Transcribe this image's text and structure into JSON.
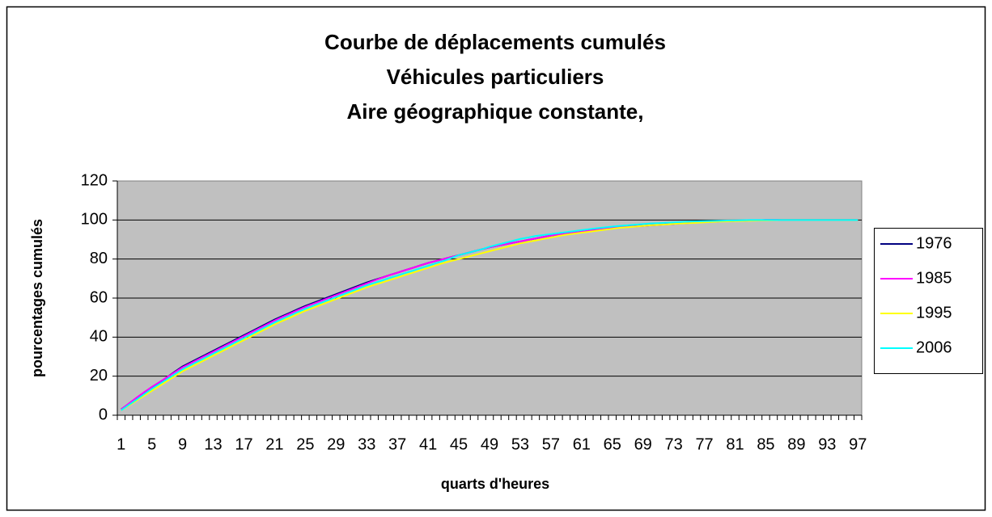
{
  "chart_data": {
    "type": "line",
    "title": [
      "Courbe de déplacements cumulés",
      "Véhicules particuliers",
      "Aire géographique constante,"
    ],
    "x_label": "quarts d'heures",
    "y_label": "pourcentages cumulés",
    "categories": [
      "1",
      null,
      null,
      null,
      "5",
      null,
      null,
      null,
      "9",
      null,
      null,
      null,
      "13",
      null,
      null,
      null,
      "17",
      null,
      null,
      null,
      "21",
      null,
      null,
      null,
      "25",
      null,
      null,
      null,
      "29",
      null,
      null,
      null,
      "33",
      null,
      null,
      null,
      "37",
      null,
      null,
      null,
      "41",
      null,
      null,
      null,
      "45",
      null,
      null,
      null,
      "49",
      null,
      null,
      null,
      "53",
      null,
      null,
      null,
      "57",
      null,
      null,
      null,
      "61",
      null,
      null,
      null,
      "65",
      null,
      null,
      null,
      "69",
      null,
      null,
      null,
      "73",
      null,
      null,
      null,
      "77",
      null,
      null,
      null,
      "81",
      null,
      null,
      null,
      "85",
      null,
      null,
      null,
      "89",
      null,
      null,
      null,
      "93",
      null,
      null,
      null,
      "97"
    ],
    "ylim": [
      0,
      120
    ],
    "yticks": [
      0,
      20,
      40,
      60,
      80,
      100,
      120
    ],
    "grid": true,
    "legend": "right",
    "series": [
      {
        "name": "1976",
        "color": "#000080",
        "values": [
          3,
          5.8,
          8.5,
          11.3,
          14,
          16.8,
          19.5,
          22.3,
          25,
          27,
          29,
          31,
          33,
          35,
          37,
          39,
          41,
          43,
          45,
          47,
          49,
          50.8,
          52.5,
          54.3,
          56,
          57.5,
          59,
          60.5,
          62,
          63.5,
          65,
          66.5,
          68,
          69.3,
          70.5,
          71.8,
          73,
          74.3,
          75.5,
          76.8,
          78,
          79,
          80,
          81,
          82,
          83,
          84,
          85,
          86,
          86.8,
          87.5,
          88.3,
          89,
          89.8,
          90.5,
          91.3,
          92,
          92.5,
          93,
          93.5,
          94,
          94.5,
          95,
          95.5,
          96,
          96.3,
          96.5,
          96.8,
          97,
          97.3,
          97.5,
          97.8,
          98,
          98.3,
          98.5,
          98.8,
          99,
          99.1,
          99.3,
          99.4,
          99.5,
          99.6,
          99.8,
          99.9,
          100,
          100,
          100,
          100,
          100,
          100,
          100,
          100,
          100,
          100,
          100,
          100,
          100
        ]
      },
      {
        "name": "1985",
        "color": "#ff00ff",
        "values": [
          3,
          6,
          9,
          11.8,
          14.5,
          17,
          19.5,
          22,
          24.5,
          26.5,
          28.5,
          30.5,
          32.5,
          34.5,
          36.5,
          38.5,
          40.5,
          42.5,
          44.5,
          46.5,
          48.5,
          50.3,
          52,
          53.8,
          55.5,
          57,
          58.5,
          60,
          61.5,
          63,
          64.5,
          66,
          67.5,
          69,
          70.5,
          71.8,
          73,
          74.3,
          75.5,
          76.8,
          78,
          79,
          80,
          81,
          82,
          83,
          84,
          85,
          86,
          86.8,
          87.5,
          88.3,
          89,
          89.8,
          90.5,
          91.3,
          92,
          92.5,
          93,
          93.5,
          94,
          94.5,
          95,
          95.5,
          96,
          96.3,
          96.5,
          96.8,
          97,
          97.3,
          97.5,
          97.8,
          98,
          98.3,
          98.5,
          98.8,
          99,
          99.1,
          99.3,
          99.4,
          99.5,
          99.6,
          99.8,
          99.9,
          100,
          100,
          100,
          100,
          100,
          100,
          100,
          100,
          100,
          100,
          100,
          100,
          100
        ]
      },
      {
        "name": "1995",
        "color": "#ffff00",
        "values": [
          2.5,
          5,
          7.5,
          10,
          12.5,
          15,
          17.5,
          20,
          22.5,
          24.5,
          26.5,
          28.5,
          30.5,
          32.5,
          34.5,
          36.5,
          38.5,
          40.5,
          42.5,
          44.5,
          46.5,
          48.3,
          50,
          51.8,
          53.5,
          55,
          56.5,
          58,
          59.5,
          61,
          62.5,
          64,
          65.5,
          66.8,
          68,
          69.3,
          70.5,
          71.8,
          73,
          74.3,
          75.5,
          76.8,
          78,
          79,
          80,
          81,
          82,
          83,
          84,
          85,
          86,
          87,
          88,
          88.8,
          89.5,
          90.3,
          91,
          91.8,
          92.5,
          93,
          93.5,
          94,
          94.5,
          95,
          95.5,
          96,
          96.3,
          96.6,
          97,
          97.3,
          97.5,
          97.7,
          98,
          98.2,
          98.4,
          98.6,
          98.8,
          99,
          99.2,
          99.3,
          99.4,
          99.5,
          99.6,
          99.7,
          99.8,
          99.9,
          100,
          100,
          100,
          100,
          100,
          100,
          100,
          100,
          100,
          100,
          100
        ]
      },
      {
        "name": "2006",
        "color": "#00ffff",
        "values": [
          2.5,
          5.3,
          8,
          10.8,
          13.5,
          16,
          18.5,
          21,
          23.5,
          25.5,
          27.5,
          29.5,
          31.5,
          33.5,
          35.5,
          37.5,
          39.5,
          41.5,
          43.5,
          45.5,
          47.5,
          49.3,
          51,
          52.8,
          54.5,
          56,
          57.5,
          59,
          60.5,
          62,
          63.5,
          65,
          66.5,
          67.8,
          69,
          70.3,
          71.5,
          72.8,
          74,
          75.3,
          76.5,
          77.8,
          79,
          80.5,
          82,
          83,
          84,
          85,
          86.3,
          87.3,
          88.3,
          89.3,
          90.3,
          91,
          91.8,
          92.3,
          92.8,
          93.3,
          93.8,
          94.3,
          94.8,
          95.3,
          95.8,
          96.2,
          96.6,
          97,
          97.3,
          97.6,
          97.9,
          98.2,
          98.4,
          98.6,
          98.8,
          99,
          99.2,
          99.3,
          99.4,
          99.5,
          99.6,
          99.7,
          99.8,
          99.9,
          100,
          100,
          100,
          100,
          100,
          100,
          100,
          100,
          100,
          100,
          100,
          100,
          100,
          100,
          100
        ]
      }
    ]
  }
}
